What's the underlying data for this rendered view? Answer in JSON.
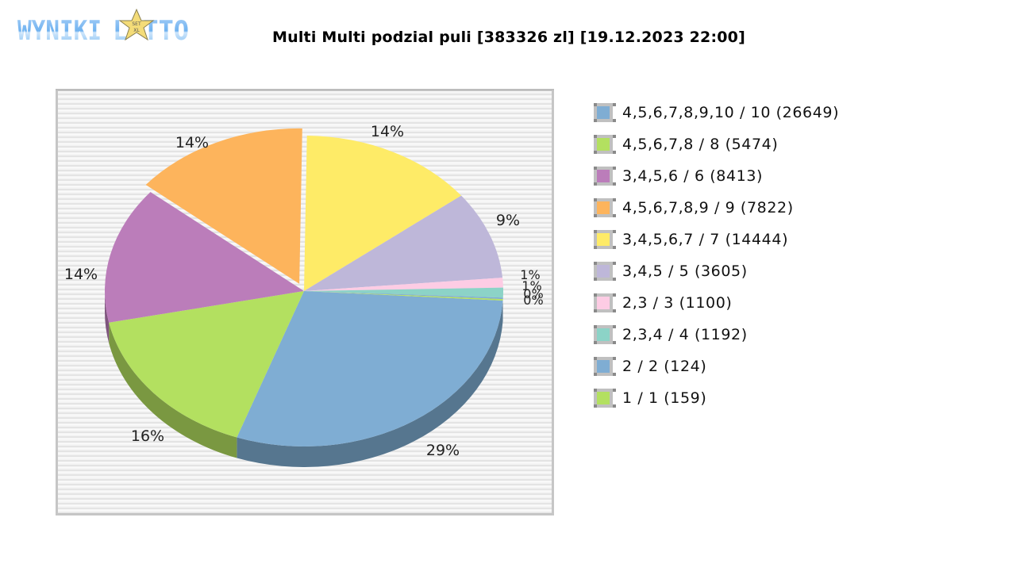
{
  "header": {
    "logo_text": "WYNIKI LOTTO",
    "title": "Multi Multi podzial puli [383326 zl] [19.12.2023 22:00]"
  },
  "legend": {
    "items": [
      {
        "label": "4,5,6,7,8,9,10 / 10 (26649)",
        "color": "#7fadd3"
      },
      {
        "label": "4,5,6,7,8 / 8 (5474)",
        "color": "#b3e060"
      },
      {
        "label": "3,4,5,6 / 6 (8413)",
        "color": "#bb7dba"
      },
      {
        "label": "4,5,6,7,8,9 / 9 (7822)",
        "color": "#fdb45c"
      },
      {
        "label": "3,4,5,6,7 / 7 (14444)",
        "color": "#feeb67"
      },
      {
        "label": "3,4,5 / 5 (3605)",
        "color": "#beb7d9"
      },
      {
        "label": "2,3 / 3 (1100)",
        "color": "#fdcce4"
      },
      {
        "label": "2,3,4 / 4 (1192)",
        "color": "#8cd3c7"
      },
      {
        "label": "2 / 2 (124)",
        "color": "#7fadd3"
      },
      {
        "label": "1 / 1 (159)",
        "color": "#b3e060"
      }
    ]
  },
  "chart_data": {
    "type": "pie",
    "title": "Multi Multi podzial puli [383326 zl] [19.12.2023 22:00]",
    "style": "3d",
    "legend_position": "right",
    "exploded_slice": "4,5,6,7,8,9 / 9 (7822)",
    "categories": [
      "4,5,6,7,8,9,10 / 10 (26649)",
      "4,5,6,7,8 / 8 (5474)",
      "3,4,5,6 / 6 (8413)",
      "4,5,6,7,8,9 / 9 (7822)",
      "3,4,5,6,7 / 7 (14444)",
      "3,4,5 / 5 (3605)",
      "2,3 / 3 (1100)",
      "2,3,4 / 4 (1192)",
      "2 / 2 (124)",
      "1 / 1 (159)"
    ],
    "values": [
      29,
      16,
      14,
      14,
      14,
      9,
      1,
      1,
      0,
      0
    ],
    "labels": [
      "29%",
      "16%",
      "14%",
      "14%",
      "14%",
      "9%",
      "1%",
      "1%",
      "0%",
      "0%"
    ],
    "colors": [
      "#7fadd3",
      "#b3e060",
      "#bb7dba",
      "#fdb45c",
      "#feeb67",
      "#beb7d9",
      "#fdcce4",
      "#8cd3c7",
      "#7fadd3",
      "#b3e060"
    ]
  }
}
